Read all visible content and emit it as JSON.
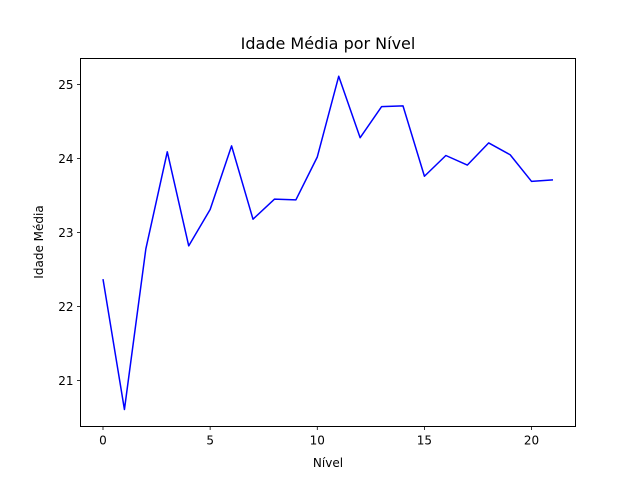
{
  "chart_data": {
    "type": "line",
    "title": "Idade Média por Nível",
    "xlabel": "Nível",
    "ylabel": "Idade Média",
    "xlim": [
      -1.05,
      22.05
    ],
    "ylim": [
      20.38,
      25.35
    ],
    "xticks": [
      0,
      5,
      10,
      15,
      20
    ],
    "yticks": [
      21,
      22,
      23,
      24,
      25
    ],
    "grid": false,
    "legend": "none",
    "series": [
      {
        "color": "#0000ff",
        "x": [
          0,
          1,
          2,
          3,
          4,
          5,
          6,
          7,
          8,
          9,
          10,
          11,
          12,
          13,
          14,
          15,
          16,
          17,
          18,
          19,
          20,
          21
        ],
        "values": [
          22.37,
          20.61,
          22.78,
          24.09,
          22.82,
          23.31,
          24.17,
          23.18,
          23.45,
          23.44,
          24.02,
          25.11,
          24.28,
          24.7,
          24.71,
          23.76,
          24.04,
          23.91,
          24.21,
          24.05,
          23.69,
          23.71
        ]
      }
    ]
  }
}
